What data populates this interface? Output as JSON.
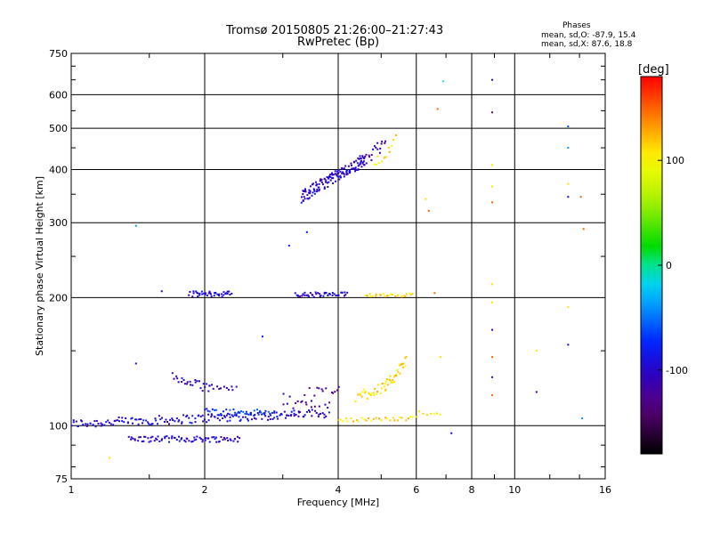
{
  "header": {
    "title_line1": "Tromsø 20150805 21:26:00–21:27:43",
    "title_line2": "RwPretec (Bp)"
  },
  "stats": {
    "heading": "Phases",
    "o_line": "mean, sd,O: -87.9, 15.4",
    "x_line": "mean, sd,X: 87.6, 18.8"
  },
  "colorbar": {
    "unit_label": "[deg]",
    "ticks": [
      {
        "value": 100,
        "label": "100"
      },
      {
        "value": 0,
        "label": "0"
      },
      {
        "value": -100,
        "label": "-100"
      }
    ],
    "range": [
      -180,
      180
    ]
  },
  "chart_data": {
    "type": "scatter",
    "title": "Tromsø 20150805 21:26:00–21:27:43",
    "subtitle": "RwPretec (Bp)",
    "xlabel": "Frequency [MHz]",
    "ylabel": "Stationary phase Virtual Height [km]",
    "xscale": "log",
    "yscale": "log",
    "xlim": [
      1,
      16
    ],
    "ylim": [
      75,
      750
    ],
    "grid": true,
    "x_ticks": [
      1,
      2,
      4,
      6,
      8,
      10,
      16
    ],
    "y_ticks": [
      75,
      100,
      200,
      300,
      400,
      500,
      600,
      750
    ],
    "x_tick_labels": [
      "1",
      "2",
      "4",
      "6",
      "8",
      "10",
      "16"
    ],
    "y_tick_labels": [
      "75",
      "100",
      "200",
      "300",
      "400",
      "500",
      "600",
      "750"
    ],
    "traces": [
      {
        "name": "",
        "x_range": [
          1.0,
          3.8
        ],
        "y_start": 101,
        "y_end": 107,
        "phase": -95,
        "count": 170,
        "y_spread": 2.5
      },
      {
        "name": "",
        "x_range": [
          1.35,
          2.4
        ],
        "y_start": 93,
        "y_end": 93,
        "phase": -100,
        "count": 80,
        "y_spread": 1.5
      },
      {
        "name": "",
        "x_range": [
          2.0,
          2.9
        ],
        "y_start": 108,
        "y_end": 107,
        "phase": -70,
        "count": 45,
        "y_spread": 2
      },
      {
        "name": "",
        "x_range": [
          1.85,
          2.3
        ],
        "y_start": 204,
        "y_end": 204,
        "phase": -95,
        "count": 40,
        "y_spread": 3
      },
      {
        "name": "",
        "x_range": [
          3.2,
          4.2
        ],
        "y_start": 203,
        "y_end": 203,
        "phase": -95,
        "count": 45,
        "y_spread": 3
      },
      {
        "name": "",
        "x_range": [
          4.6,
          5.9
        ],
        "y_start": 203,
        "y_end": 203,
        "phase": 110,
        "count": 25,
        "y_spread": 2
      },
      {
        "name": "",
        "x_range": [
          3.3,
          4.6
        ],
        "y_start": 345,
        "y_end": 420,
        "phase": -100,
        "count": 140,
        "y_spread": 12
      },
      {
        "name": "",
        "x_range": [
          4.4,
          5.1
        ],
        "y_start": 410,
        "y_end": 460,
        "phase": -110,
        "count": 25,
        "y_spread": 15
      },
      {
        "name": "",
        "x_range": [
          4.8,
          5.4
        ],
        "y_start": 410,
        "y_end": 470,
        "phase": 110,
        "count": 12,
        "y_spread": 15
      },
      {
        "name": "",
        "x_range": [
          1.7,
          2.05
        ],
        "y_start": 130,
        "y_end": 122,
        "phase": -100,
        "count": 25,
        "y_spread": 3
      },
      {
        "name": "",
        "x_range": [
          2.05,
          2.35
        ],
        "y_start": 124,
        "y_end": 122,
        "phase": -110,
        "count": 12,
        "y_spread": 2
      },
      {
        "name": "",
        "x_range": [
          3.0,
          4.0
        ],
        "y_start": 112,
        "y_end": 118,
        "phase": -120,
        "count": 35,
        "y_spread": 8
      },
      {
        "name": "",
        "x_range": [
          4.4,
          5.1
        ],
        "y_start": 117,
        "y_end": 124,
        "phase": 110,
        "count": 25,
        "y_spread": 4
      },
      {
        "name": "",
        "x_range": [
          5.1,
          5.7
        ],
        "y_start": 122,
        "y_end": 142,
        "phase": 110,
        "count": 30,
        "y_spread": 4
      },
      {
        "name": "",
        "x_range": [
          4.0,
          5.9
        ],
        "y_start": 103,
        "y_end": 104,
        "phase": 110,
        "count": 30,
        "y_spread": 1
      },
      {
        "name": "",
        "x_range": [
          6.0,
          6.8
        ],
        "y_start": 106,
        "y_end": 108,
        "phase": 110,
        "count": 8,
        "y_spread": 2
      }
    ],
    "points": [
      {
        "x": 1.4,
        "y": 295,
        "phase": -40
      },
      {
        "x": 1.4,
        "y": 140,
        "phase": -90
      },
      {
        "x": 1.22,
        "y": 84,
        "phase": 110
      },
      {
        "x": 1.6,
        "y": 207,
        "phase": -100
      },
      {
        "x": 2.7,
        "y": 162,
        "phase": -80
      },
      {
        "x": 3.1,
        "y": 265,
        "phase": -80
      },
      {
        "x": 3.4,
        "y": 285,
        "phase": -80
      },
      {
        "x": 6.3,
        "y": 341,
        "phase": 110
      },
      {
        "x": 6.4,
        "y": 320,
        "phase": 150
      },
      {
        "x": 6.9,
        "y": 645,
        "phase": -10
      },
      {
        "x": 6.7,
        "y": 555,
        "phase": 150
      },
      {
        "x": 6.6,
        "y": 205,
        "phase": 150
      },
      {
        "x": 6.8,
        "y": 145,
        "phase": 110
      },
      {
        "x": 7.2,
        "y": 96,
        "phase": -100
      },
      {
        "x": 8.9,
        "y": 650,
        "phase": -110
      },
      {
        "x": 8.9,
        "y": 545,
        "phase": -130
      },
      {
        "x": 8.9,
        "y": 410,
        "phase": 110
      },
      {
        "x": 8.9,
        "y": 365,
        "phase": 110
      },
      {
        "x": 8.9,
        "y": 335,
        "phase": 150
      },
      {
        "x": 8.9,
        "y": 215,
        "phase": 110
      },
      {
        "x": 8.9,
        "y": 195,
        "phase": 110
      },
      {
        "x": 8.9,
        "y": 168,
        "phase": -100
      },
      {
        "x": 8.9,
        "y": 145,
        "phase": 150
      },
      {
        "x": 8.9,
        "y": 130,
        "phase": -100
      },
      {
        "x": 8.9,
        "y": 118,
        "phase": 150
      },
      {
        "x": 11.2,
        "y": 150,
        "phase": 110
      },
      {
        "x": 11.2,
        "y": 120,
        "phase": -120
      },
      {
        "x": 13.2,
        "y": 505,
        "phase": -60
      },
      {
        "x": 13.2,
        "y": 450,
        "phase": -40
      },
      {
        "x": 13.2,
        "y": 370,
        "phase": 110
      },
      {
        "x": 13.2,
        "y": 345,
        "phase": -100
      },
      {
        "x": 13.2,
        "y": 190,
        "phase": 110
      },
      {
        "x": 13.2,
        "y": 155,
        "phase": -100
      },
      {
        "x": 14.1,
        "y": 345,
        "phase": 150
      },
      {
        "x": 14.3,
        "y": 290,
        "phase": 150
      },
      {
        "x": 14.2,
        "y": 104,
        "phase": -40
      }
    ]
  }
}
